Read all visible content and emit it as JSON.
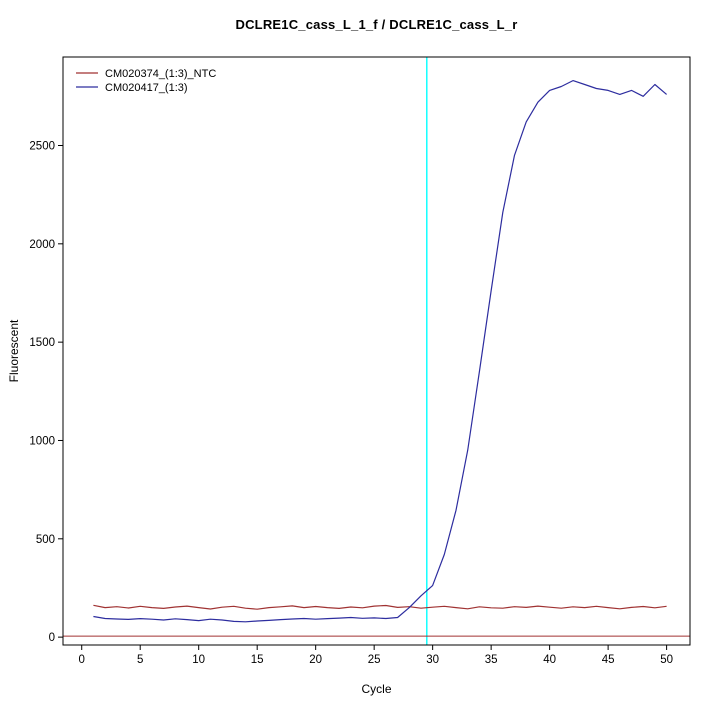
{
  "title": "DCLRE1C_cass_L_1_f / DCLRE1C_cass_L_r",
  "chart_data": {
    "type": "line",
    "title": "DCLRE1C_cass_L_1_f / DCLRE1C_cass_L_r",
    "xlabel": "Cycle",
    "ylabel": "Fluorescent",
    "xlim": [
      -1.6,
      52
    ],
    "ylim": [
      -40,
      2950
    ],
    "x_ticks": [
      0,
      5,
      10,
      15,
      20,
      25,
      30,
      35,
      40,
      45,
      50
    ],
    "y_ticks": [
      0,
      500,
      1000,
      1500,
      2000,
      2500
    ],
    "grid": false,
    "legend_position": "top-left",
    "ct_line_x": 29.5,
    "threshold_y": 5,
    "colors": {
      "ntc": "#A03232",
      "sample": "#2D2D9F",
      "ct_line": "#00FFFF",
      "axis": "#000000"
    },
    "x": [
      1,
      2,
      3,
      4,
      5,
      6,
      7,
      8,
      9,
      10,
      11,
      12,
      13,
      14,
      15,
      16,
      17,
      18,
      19,
      20,
      21,
      22,
      23,
      24,
      25,
      26,
      27,
      28,
      29,
      30,
      31,
      32,
      33,
      34,
      35,
      36,
      37,
      38,
      39,
      40,
      41,
      42,
      43,
      44,
      45,
      46,
      47,
      48,
      49,
      50
    ],
    "series": [
      {
        "name": "CM020374_(1:3)_NTC",
        "color_key": "ntc",
        "values": [
          162,
          150,
          155,
          148,
          157,
          150,
          146,
          153,
          158,
          150,
          143,
          152,
          157,
          147,
          142,
          150,
          154,
          159,
          150,
          156,
          150,
          146,
          153,
          149,
          158,
          161,
          151,
          155,
          147,
          152,
          157,
          150,
          144,
          154,
          149,
          147,
          155,
          151,
          158,
          152,
          147,
          154,
          150,
          157,
          150,
          144,
          151,
          156,
          149,
          157
        ]
      },
      {
        "name": "CM020417_(1:3)",
        "color_key": "sample",
        "values": [
          105,
          95,
          92,
          90,
          94,
          91,
          87,
          93,
          89,
          84,
          91,
          87,
          80,
          78,
          82,
          85,
          89,
          92,
          95,
          91,
          94,
          97,
          100,
          96,
          98,
          95,
          100,
          150,
          210,
          262,
          420,
          645,
          950,
          1350,
          1760,
          2160,
          2450,
          2620,
          2720,
          2780,
          2800,
          2830,
          2810,
          2790,
          2780,
          2760,
          2780,
          2750,
          2810,
          2760
        ]
      }
    ]
  }
}
